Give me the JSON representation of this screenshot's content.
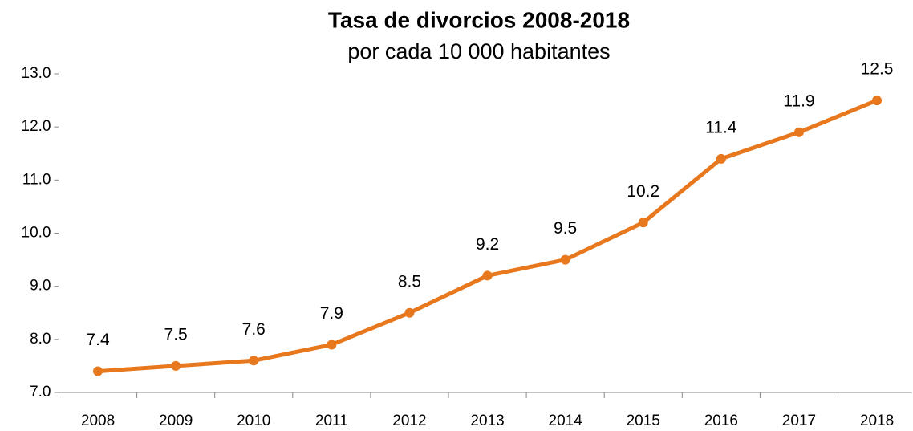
{
  "chart_data": {
    "type": "line",
    "title": "Tasa de divorcios 2008-2018",
    "subtitle": "por cada 10 000 habitantes",
    "categories": [
      "2008",
      "2009",
      "2010",
      "2011",
      "2012",
      "2013",
      "2014",
      "2015",
      "2016",
      "2017",
      "2018"
    ],
    "series": [
      {
        "name": "Tasa de divorcios",
        "color": "#e8781e",
        "values": [
          7.4,
          7.5,
          7.6,
          7.9,
          8.5,
          9.2,
          9.5,
          10.2,
          11.4,
          11.9,
          12.5
        ]
      }
    ],
    "ylim": [
      7,
      13
    ],
    "yticks": [
      {
        "value": 7,
        "label": "7.0"
      },
      {
        "value": 8,
        "label": "8.0"
      },
      {
        "value": 9,
        "label": "9.0"
      },
      {
        "value": 10,
        "label": "10.0"
      },
      {
        "value": 11,
        "label": "11.0"
      },
      {
        "value": 12,
        "label": "12.0"
      },
      {
        "value": 13,
        "label": "13.0"
      }
    ],
    "grid": false,
    "legend": false
  }
}
